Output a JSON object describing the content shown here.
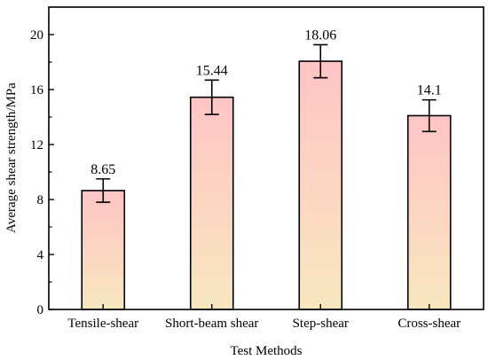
{
  "chart_data": {
    "type": "bar",
    "title": "",
    "xlabel": "Test Methods",
    "ylabel": "Average shear strength/MPa",
    "categories": [
      "Tensile-shear",
      "Short-beam shear",
      "Step-shear",
      "Cross-shear"
    ],
    "values": [
      8.65,
      15.44,
      18.06,
      14.1
    ],
    "value_labels": [
      "8.65",
      "15.44",
      "18.06",
      "14.1"
    ],
    "error": [
      0.85,
      1.25,
      1.2,
      1.15
    ],
    "ylim": [
      0,
      22
    ],
    "yticks": [
      0,
      4,
      8,
      12,
      16,
      20
    ],
    "grid": false,
    "legend": "none",
    "colors": {
      "bar_top": "#ffc4c4",
      "bar_bottom": "#f8e7bf",
      "bar_edge": "#000000",
      "axis": "#000000"
    }
  }
}
